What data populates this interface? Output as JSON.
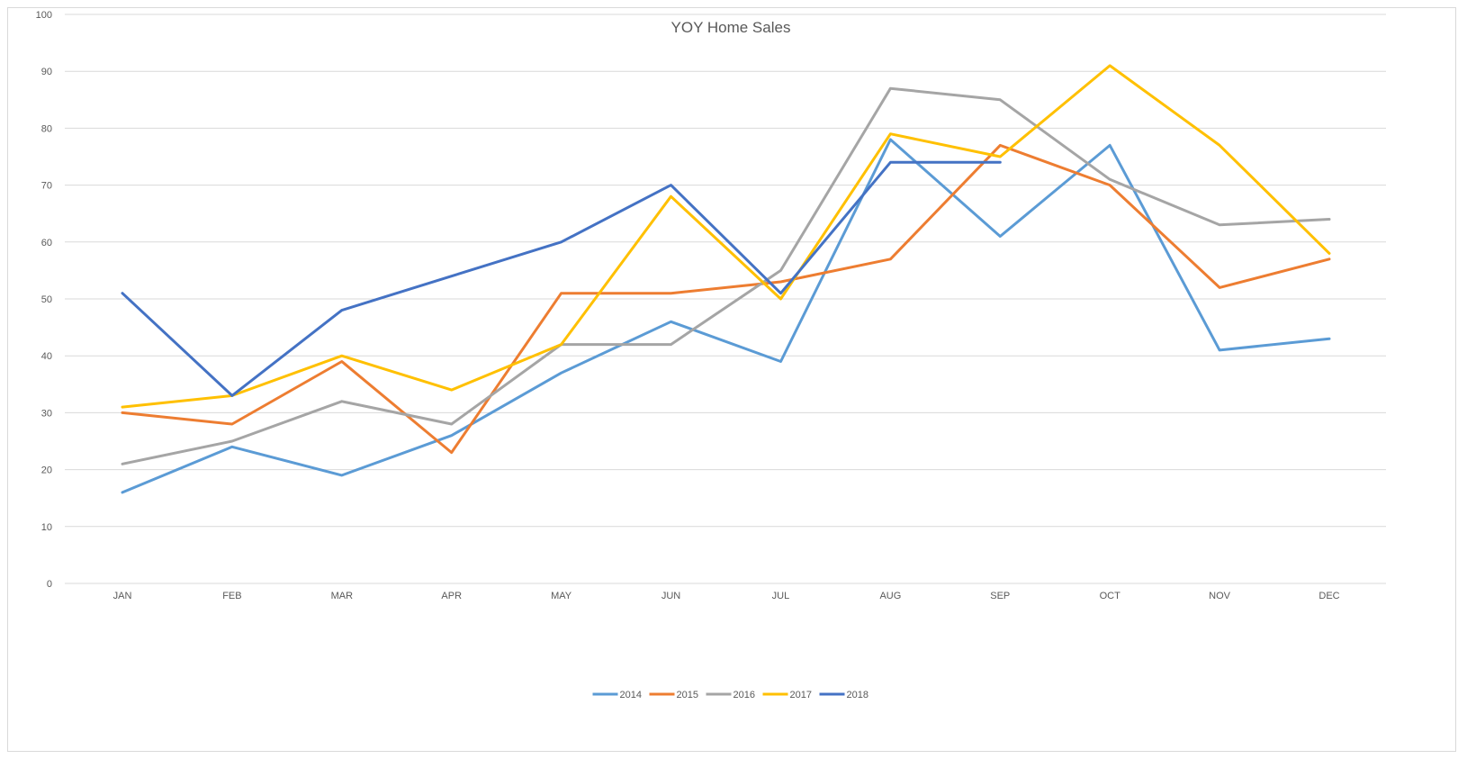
{
  "chart_data": {
    "type": "line",
    "title": "YOY Home Sales",
    "xlabel": "",
    "ylabel": "",
    "categories": [
      "JAN",
      "FEB",
      "MAR",
      "APR",
      "MAY",
      "JUN",
      "JUL",
      "AUG",
      "SEP",
      "OCT",
      "NOV",
      "DEC"
    ],
    "ylim": [
      0,
      100
    ],
    "yticks": [
      0,
      10,
      20,
      30,
      40,
      50,
      60,
      70,
      80,
      90,
      100
    ],
    "grid": true,
    "legend_position": "bottom",
    "series": [
      {
        "name": "2014",
        "color": "#5b9bd5",
        "values": [
          16,
          24,
          19,
          26,
          37,
          46,
          39,
          78,
          61,
          77,
          41,
          43
        ]
      },
      {
        "name": "2015",
        "color": "#ed7d31",
        "values": [
          30,
          28,
          39,
          23,
          51,
          51,
          53,
          57,
          77,
          70,
          52,
          57
        ]
      },
      {
        "name": "2016",
        "color": "#a5a5a5",
        "values": [
          21,
          25,
          32,
          28,
          42,
          42,
          55,
          87,
          85,
          71,
          63,
          64
        ]
      },
      {
        "name": "2017",
        "color": "#ffc000",
        "values": [
          31,
          33,
          40,
          34,
          42,
          68,
          50,
          79,
          75,
          91,
          77,
          58
        ]
      },
      {
        "name": "2018",
        "color": "#4472c4",
        "values": [
          51,
          33,
          48,
          54,
          60,
          70,
          51,
          74,
          74,
          null,
          null,
          null
        ]
      }
    ]
  }
}
